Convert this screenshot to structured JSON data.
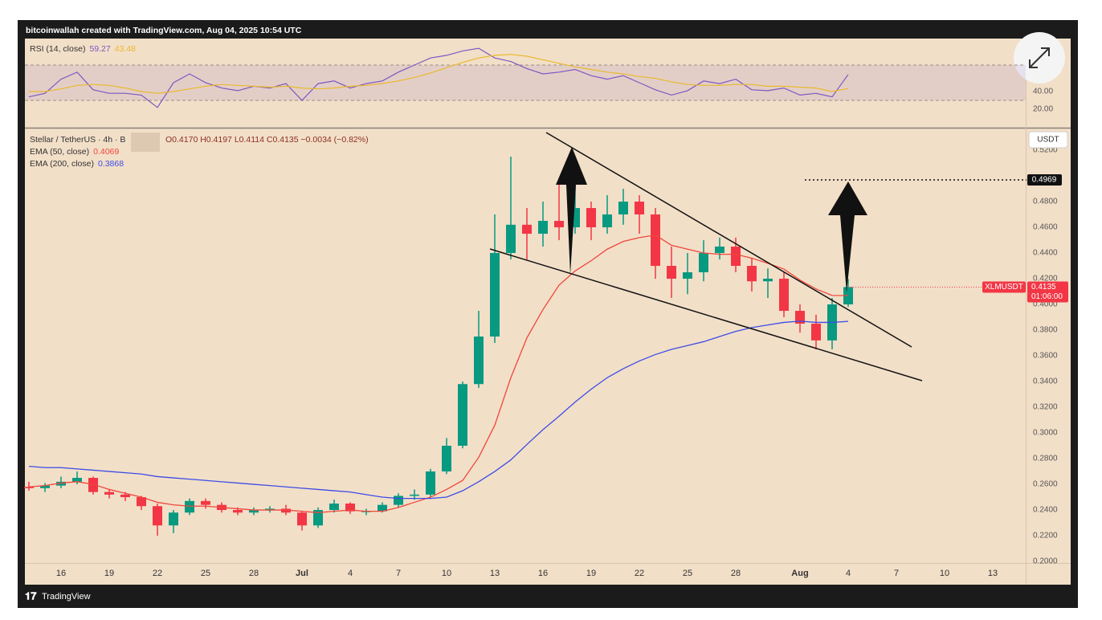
{
  "header": "bitcoinwallah created with TradingView.com, Aug 04, 2025 10:54 UTC",
  "footer": "TradingView",
  "chart_data": [
    {
      "type": "candlestick",
      "title": "Stellar / TetherUS · 4h · B",
      "ohlc_legend": "O0.4170 H0.4197 L0.4114 C0.4135 −0.0034 (−0.82%)",
      "currency": "USDT",
      "symbol": "XLMUSDT",
      "countdown": "01:06:00",
      "target": 0.4969,
      "up_color": "#089981",
      "down_color": "#f23645",
      "categories": [
        null,
        null,
        "16",
        null,
        null,
        "19",
        null,
        null,
        "22",
        null,
        null,
        "25",
        null,
        null,
        "28",
        null,
        null,
        "Jul",
        null,
        null,
        "4",
        null,
        null,
        "7",
        null,
        null,
        "10",
        null,
        null,
        "13",
        null,
        null,
        "16",
        null,
        null,
        "19",
        null,
        null,
        "22",
        null,
        null,
        "25",
        null,
        null,
        "28",
        null,
        null,
        null,
        "Aug",
        null,
        null,
        "4",
        null,
        null,
        "7",
        null,
        null,
        "10",
        null,
        null,
        "13",
        null,
        null
      ],
      "open": [
        0.258,
        0.257,
        0.259,
        0.262,
        0.265,
        0.254,
        0.252,
        0.25,
        0.243,
        0.228,
        0.238,
        0.247,
        0.244,
        0.24,
        0.238,
        0.24,
        0.241,
        0.238,
        0.228,
        0.24,
        0.245,
        0.239,
        0.239,
        0.244,
        0.251,
        0.252,
        0.27,
        0.29,
        0.338,
        0.375,
        0.44,
        0.462,
        0.455,
        0.465,
        0.46,
        0.475,
        0.46,
        0.47,
        0.48,
        0.47,
        0.43,
        0.42,
        0.425,
        0.44,
        0.445,
        0.43,
        0.418,
        0.42,
        0.395,
        0.385,
        0.372,
        0.4,
        null,
        null,
        null,
        null,
        null,
        null,
        null,
        null,
        null,
        null,
        null
      ],
      "high": [
        0.262,
        0.261,
        0.266,
        0.27,
        0.266,
        0.256,
        0.254,
        0.251,
        0.245,
        0.24,
        0.249,
        0.249,
        0.246,
        0.242,
        0.242,
        0.243,
        0.244,
        0.239,
        0.242,
        0.248,
        0.246,
        0.241,
        0.246,
        0.253,
        0.256,
        0.272,
        0.296,
        0.34,
        0.395,
        0.47,
        0.515,
        0.475,
        0.48,
        0.495,
        0.505,
        0.48,
        0.485,
        0.49,
        0.485,
        0.475,
        0.445,
        0.44,
        0.45,
        0.452,
        0.452,
        0.436,
        0.428,
        0.425,
        0.4,
        0.392,
        0.405,
        0.4197,
        null,
        null,
        null,
        null,
        null,
        null,
        null,
        null,
        null,
        null,
        null
      ],
      "low": [
        0.255,
        0.254,
        0.257,
        0.26,
        0.252,
        0.249,
        0.247,
        0.24,
        0.22,
        0.222,
        0.236,
        0.241,
        0.238,
        0.236,
        0.236,
        0.238,
        0.236,
        0.224,
        0.226,
        0.238,
        0.237,
        0.236,
        0.238,
        0.242,
        0.248,
        0.25,
        0.268,
        0.288,
        0.335,
        0.37,
        0.435,
        0.435,
        0.445,
        0.45,
        0.455,
        0.45,
        0.455,
        0.462,
        0.455,
        0.42,
        0.405,
        0.408,
        0.418,
        0.435,
        0.425,
        0.41,
        0.405,
        0.39,
        0.378,
        0.365,
        0.365,
        0.398,
        null,
        null,
        null,
        null,
        null,
        null,
        null,
        null,
        null,
        null,
        null
      ],
      "close": [
        0.257,
        0.259,
        0.262,
        0.265,
        0.254,
        0.252,
        0.25,
        0.243,
        0.228,
        0.238,
        0.247,
        0.244,
        0.24,
        0.238,
        0.24,
        0.241,
        0.238,
        0.228,
        0.24,
        0.245,
        0.239,
        0.239,
        0.244,
        0.251,
        0.252,
        0.27,
        0.29,
        0.338,
        0.375,
        0.44,
        0.462,
        0.455,
        0.465,
        0.46,
        0.475,
        0.46,
        0.47,
        0.48,
        0.47,
        0.43,
        0.42,
        0.425,
        0.44,
        0.445,
        0.43,
        0.418,
        0.42,
        0.395,
        0.385,
        0.372,
        0.4,
        0.4135,
        null,
        null,
        null,
        null,
        null,
        null,
        null,
        null,
        null,
        null,
        null
      ],
      "series": [
        {
          "name": "EMA (50, close)",
          "color": "#f0463c",
          "values": [
            0.258,
            0.259,
            0.261,
            0.262,
            0.26,
            0.256,
            0.253,
            0.25,
            0.246,
            0.244,
            0.243,
            0.243,
            0.242,
            0.241,
            0.24,
            0.24,
            0.24,
            0.239,
            0.238,
            0.239,
            0.24,
            0.239,
            0.239,
            0.242,
            0.246,
            0.25,
            0.256,
            0.263,
            0.281,
            0.306,
            0.343,
            0.374,
            0.396,
            0.415,
            0.426,
            0.434,
            0.443,
            0.449,
            0.452,
            0.454,
            0.446,
            0.443,
            0.44,
            0.439,
            0.439,
            0.436,
            0.432,
            0.4275,
            0.419,
            0.412,
            0.407,
            0.4069,
            null,
            null,
            null,
            null,
            null,
            null,
            null,
            null,
            null,
            null,
            null
          ]
        },
        {
          "name": "EMA (200, close)",
          "color": "#3d4ce6",
          "values": [
            0.274,
            0.273,
            0.273,
            0.272,
            0.271,
            0.27,
            0.269,
            0.268,
            0.266,
            0.265,
            0.264,
            0.263,
            0.262,
            0.261,
            0.26,
            0.259,
            0.258,
            0.257,
            0.256,
            0.255,
            0.254,
            0.252,
            0.25,
            0.249,
            0.249,
            0.249,
            0.25,
            0.255,
            0.262,
            0.27,
            0.279,
            0.291,
            0.3025,
            0.313,
            0.324,
            0.334,
            0.343,
            0.35,
            0.356,
            0.361,
            0.365,
            0.368,
            0.371,
            0.375,
            0.379,
            0.382,
            0.384,
            0.386,
            0.387,
            0.386,
            0.386,
            0.3868,
            null,
            null,
            null,
            null,
            null,
            null,
            null,
            null,
            null,
            null,
            null
          ]
        }
      ],
      "ylim": [
        0.1994,
        0.5369
      ],
      "yticks": [
        {
          "value": 0.2,
          "label": "0.2000"
        },
        {
          "value": 0.22,
          "label": "0.2200"
        },
        {
          "value": 0.24,
          "label": "0.2400"
        },
        {
          "value": 0.26,
          "label": "0.2600"
        },
        {
          "value": 0.28,
          "label": "0.2800"
        },
        {
          "value": 0.3,
          "label": "0.3000"
        },
        {
          "value": 0.32,
          "label": "0.3200"
        },
        {
          "value": 0.34,
          "label": "0.3400"
        },
        {
          "value": 0.36,
          "label": "0.3600"
        },
        {
          "value": 0.38,
          "label": "0.3800"
        },
        {
          "value": 0.4,
          "label": "0.4000"
        },
        {
          "value": 0.42,
          "label": "0.4200"
        },
        {
          "value": 0.44,
          "label": "0.4400"
        },
        {
          "value": 0.46,
          "label": "0.4600"
        },
        {
          "value": 0.48,
          "label": "0.4800"
        },
        {
          "value": 0.52,
          "label": "0.5200"
        }
      ]
    },
    {
      "type": "line",
      "title": "RSI (14, close)",
      "band": [
        30,
        70
      ],
      "band_color": "#7e57c2",
      "series": [
        {
          "name": "RSI",
          "color": "#7e57c2",
          "values": [
            34,
            38,
            54,
            62,
            42,
            38,
            38,
            36,
            22,
            50,
            60,
            50,
            44,
            41,
            46,
            44,
            49,
            30,
            49,
            52,
            44,
            49,
            52,
            62,
            70,
            78,
            81,
            86,
            89,
            78,
            74,
            66,
            60,
            62,
            65,
            58,
            54,
            58,
            50,
            42,
            36,
            41,
            52,
            49,
            54,
            42,
            41,
            44,
            36,
            38,
            34,
            59.27,
            null,
            null,
            null,
            null,
            null,
            null,
            null,
            null,
            null,
            null,
            null
          ]
        },
        {
          "name": "RSI MA",
          "color": "#e8b92e",
          "values": [
            40,
            40,
            43,
            47,
            48,
            47,
            44,
            40,
            38,
            40,
            43,
            46,
            48,
            47,
            46,
            45,
            46,
            44,
            43,
            44,
            46,
            47,
            49,
            52,
            56,
            61,
            67,
            73,
            78,
            81,
            82,
            80,
            76,
            72,
            68,
            65,
            62,
            60,
            57,
            55,
            51,
            48,
            47,
            47,
            48,
            48,
            46,
            46,
            45,
            44,
            40,
            43.48,
            null,
            null,
            null,
            null,
            null,
            null,
            null,
            null,
            null,
            null,
            null
          ]
        }
      ],
      "ylim": [
        0,
        100
      ],
      "yticks": [
        {
          "value": 40,
          "label": "40.00"
        },
        {
          "value": 20,
          "label": "20.00"
        }
      ]
    }
  ]
}
